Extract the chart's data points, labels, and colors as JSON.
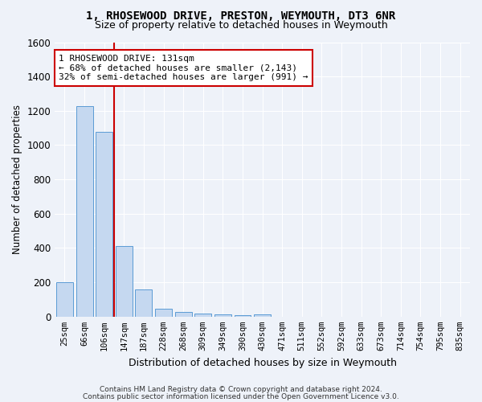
{
  "title": "1, RHOSEWOOD DRIVE, PRESTON, WEYMOUTH, DT3 6NR",
  "subtitle": "Size of property relative to detached houses in Weymouth",
  "xlabel": "Distribution of detached houses by size in Weymouth",
  "ylabel": "Number of detached properties",
  "footer_line1": "Contains HM Land Registry data © Crown copyright and database right 2024.",
  "footer_line2": "Contains public sector information licensed under the Open Government Licence v3.0.",
  "categories": [
    "25sqm",
    "66sqm",
    "106sqm",
    "147sqm",
    "187sqm",
    "228sqm",
    "268sqm",
    "309sqm",
    "349sqm",
    "390sqm",
    "430sqm",
    "471sqm",
    "511sqm",
    "552sqm",
    "592sqm",
    "633sqm",
    "673sqm",
    "714sqm",
    "754sqm",
    "795sqm",
    "835sqm"
  ],
  "values": [
    203,
    1225,
    1075,
    410,
    160,
    45,
    25,
    20,
    15,
    10,
    15,
    0,
    0,
    0,
    0,
    0,
    0,
    0,
    0,
    0,
    0
  ],
  "bar_color": "#c5d8f0",
  "bar_edge_color": "#5b9bd5",
  "vline_x": 2.5,
  "annotation_text": "1 RHOSEWOOD DRIVE: 131sqm\n← 68% of detached houses are smaller (2,143)\n32% of semi-detached houses are larger (991) →",
  "annotation_box_color": "#ffffff",
  "annotation_box_edge_color": "#cc0000",
  "vline_color": "#cc0000",
  "background_color": "#eef2f9",
  "grid_color": "#ffffff",
  "ylim": [
    0,
    1600
  ],
  "yticks": [
    0,
    200,
    400,
    600,
    800,
    1000,
    1200,
    1400,
    1600
  ]
}
